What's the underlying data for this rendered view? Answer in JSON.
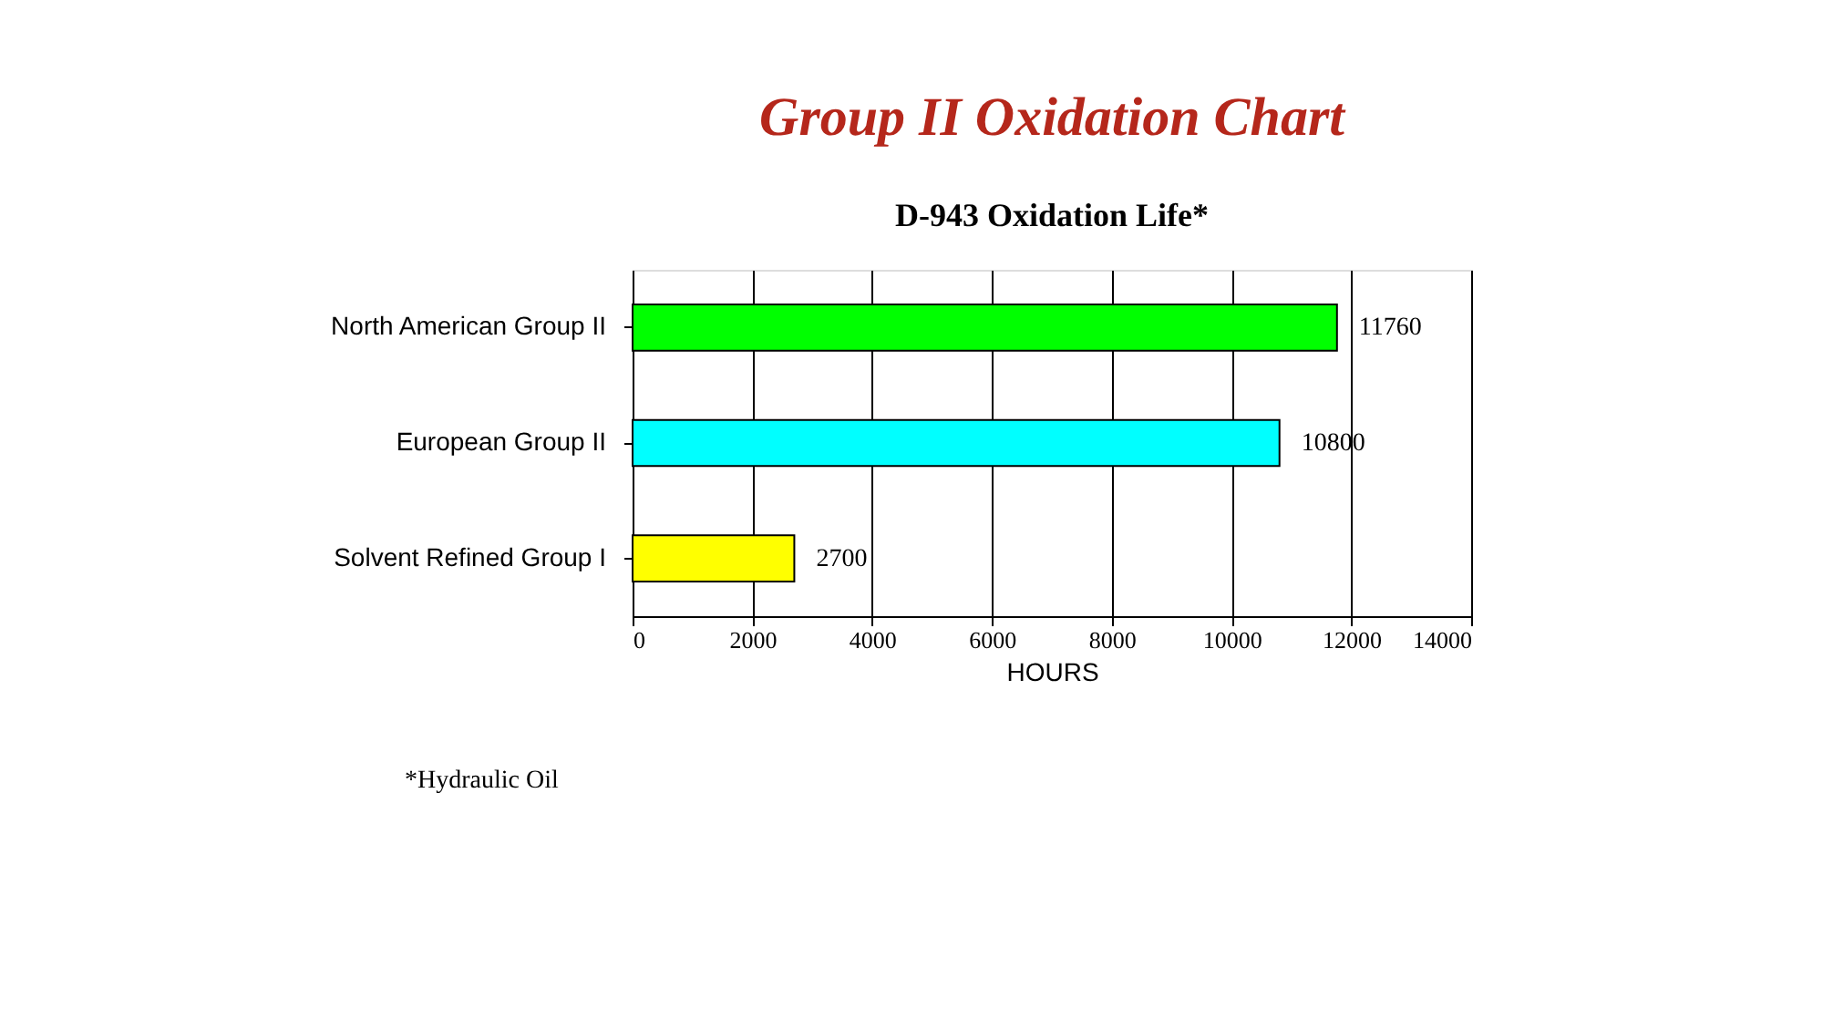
{
  "chart_data": {
    "type": "bar",
    "orientation": "horizontal",
    "title": "Group II Oxidation Chart",
    "subtitle": "D-943 Oxidation Life*",
    "categories": [
      "North American Group II",
      "European Group II",
      "Solvent Refined Group I"
    ],
    "values": [
      11760,
      10800,
      2700
    ],
    "colors": [
      "#00ff00",
      "#00ffff",
      "#ffff00"
    ],
    "xlim": [
      0,
      14000
    ],
    "xticks": [
      0,
      2000,
      4000,
      6000,
      8000,
      10000,
      12000,
      14000
    ],
    "xlabel": "HOURS",
    "grid": "x",
    "data_labels": true,
    "annotations": [
      "*Hydraulic Oil"
    ]
  }
}
